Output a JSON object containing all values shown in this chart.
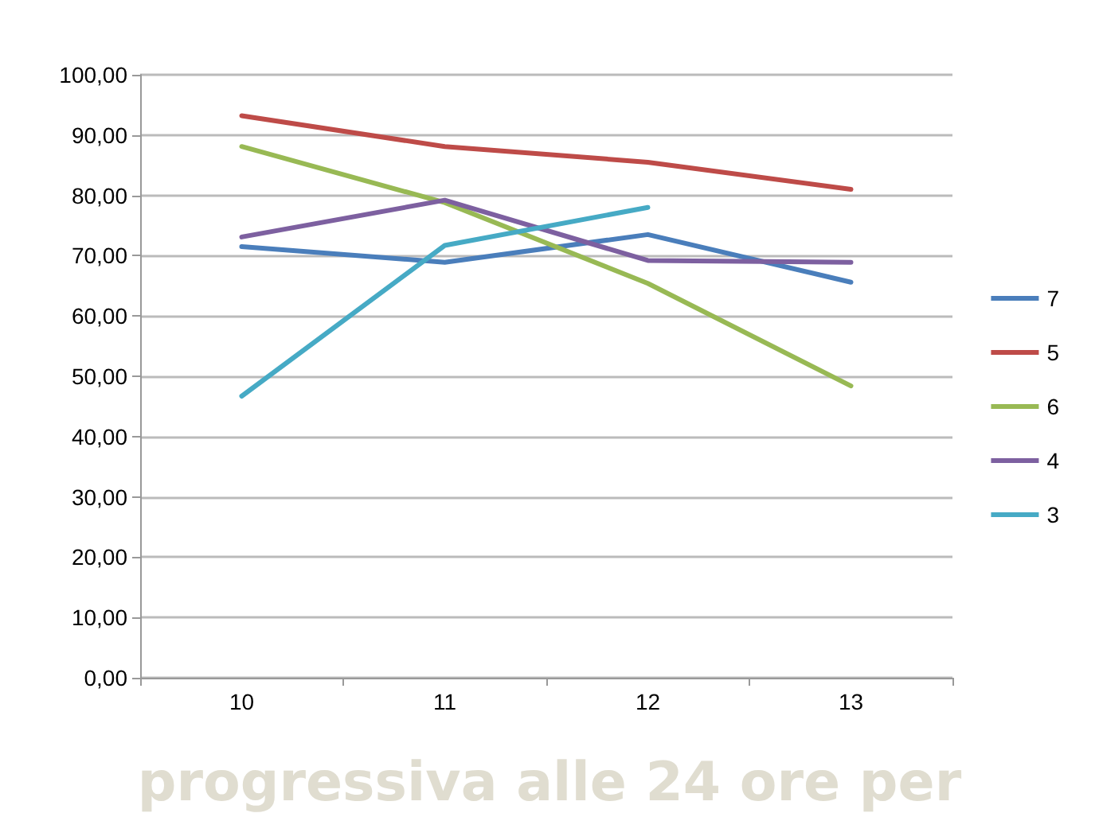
{
  "chart_data": {
    "type": "line",
    "categories": [
      "10",
      "11",
      "12",
      "13"
    ],
    "series": [
      {
        "name": "7",
        "color": "#4a7ebb",
        "values": [
          71.5,
          68.9,
          73.5,
          65.6
        ]
      },
      {
        "name": "5",
        "color": "#be4b48",
        "values": [
          93.2,
          88.1,
          85.5,
          81.0
        ]
      },
      {
        "name": "6",
        "color": "#98b954",
        "values": [
          88.1,
          78.8,
          65.4,
          48.4
        ]
      },
      {
        "name": "4",
        "color": "#7d60a0",
        "values": [
          73.1,
          79.2,
          69.2,
          68.9
        ]
      },
      {
        "name": "3",
        "color": "#46aac5",
        "values": [
          46.7,
          71.7,
          78.0,
          null
        ]
      }
    ],
    "ylim": [
      0,
      100
    ],
    "yticks": [
      {
        "value": 0,
        "label": "0,00"
      },
      {
        "value": 10,
        "label": "10,00"
      },
      {
        "value": 20,
        "label": "20,00"
      },
      {
        "value": 30,
        "label": "30,00"
      },
      {
        "value": 40,
        "label": "40,00"
      },
      {
        "value": 50,
        "label": "50,00"
      },
      {
        "value": 60,
        "label": "60,00"
      },
      {
        "value": 70,
        "label": "70,00"
      },
      {
        "value": 80,
        "label": "80,00"
      },
      {
        "value": 90,
        "label": "90,00"
      },
      {
        "value": 100,
        "label": "100,00"
      }
    ],
    "grid": "y",
    "legend": "right",
    "marker": "none",
    "line_style": "solid",
    "annotations": [
      "progressiva alle 24 ore per"
    ]
  }
}
